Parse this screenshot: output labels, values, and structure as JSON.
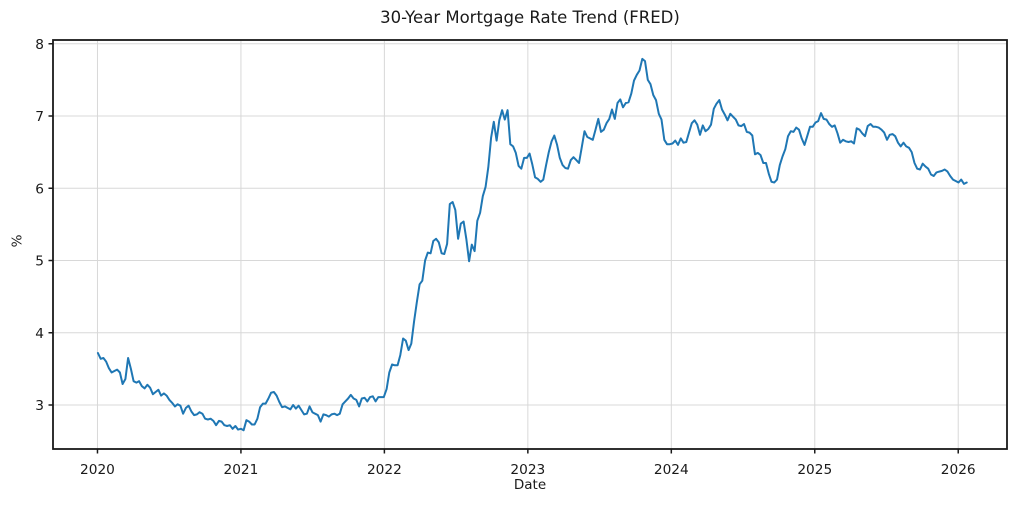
{
  "chart_data": {
    "type": "line",
    "title": "30-Year Mortgage Rate Trend (FRED)",
    "xlabel": "Date",
    "ylabel": "%",
    "grid": true,
    "grid_color": "#d8d8d8",
    "spine_color": "#1a1a1a",
    "line_color": "#1f77b4",
    "legend": "none",
    "xlim": [
      2019.69,
      2026.34
    ],
    "ylim": [
      2.391,
      8.052
    ],
    "x_ticks": [
      2020,
      2021,
      2022,
      2023,
      2024,
      2025,
      2026
    ],
    "y_ticks": [
      3,
      4,
      5,
      6,
      7,
      8
    ],
    "x_unit": "decimal_year",
    "series": [
      {
        "x_start": 2020.003,
        "x_step_years": 0.0191650925,
        "values": [
          3.72,
          3.64,
          3.65,
          3.6,
          3.51,
          3.45,
          3.47,
          3.49,
          3.45,
          3.29,
          3.36,
          3.65,
          3.5,
          3.33,
          3.31,
          3.33,
          3.26,
          3.23,
          3.28,
          3.24,
          3.15,
          3.18,
          3.21,
          3.13,
          3.16,
          3.13,
          3.07,
          3.03,
          2.98,
          3.01,
          2.99,
          2.88,
          2.96,
          2.99,
          2.91,
          2.86,
          2.87,
          2.9,
          2.88,
          2.81,
          2.8,
          2.81,
          2.78,
          2.72,
          2.78,
          2.77,
          2.72,
          2.71,
          2.72,
          2.67,
          2.71,
          2.66,
          2.67,
          2.65,
          2.79,
          2.77,
          2.73,
          2.73,
          2.81,
          2.97,
          3.02,
          3.02,
          3.09,
          3.17,
          3.18,
          3.13,
          3.04,
          2.97,
          2.98,
          2.96,
          2.94,
          3.0,
          2.95,
          2.99,
          2.93,
          2.87,
          2.88,
          2.98,
          2.9,
          2.88,
          2.86,
          2.77,
          2.87,
          2.86,
          2.84,
          2.87,
          2.88,
          2.86,
          2.88,
          3.01,
          3.05,
          3.09,
          3.14,
          3.09,
          3.07,
          2.98,
          3.09,
          3.1,
          3.05,
          3.11,
          3.12,
          3.05,
          3.11,
          3.11,
          3.11,
          3.22,
          3.45,
          3.56,
          3.55,
          3.55,
          3.69,
          3.92,
          3.89,
          3.76,
          3.85,
          4.16,
          4.42,
          4.67,
          4.72,
          5.0,
          5.11,
          5.1,
          5.27,
          5.3,
          5.25,
          5.1,
          5.09,
          5.23,
          5.78,
          5.81,
          5.7,
          5.3,
          5.51,
          5.54,
          5.3,
          4.99,
          5.22,
          5.13,
          5.55,
          5.66,
          5.89,
          6.02,
          6.29,
          6.7,
          6.92,
          6.66,
          6.94,
          7.08,
          6.95,
          7.08,
          6.61,
          6.58,
          6.49,
          6.31,
          6.27,
          6.42,
          6.42,
          6.48,
          6.33,
          6.15,
          6.13,
          6.09,
          6.12,
          6.32,
          6.5,
          6.65,
          6.73,
          6.6,
          6.42,
          6.32,
          6.28,
          6.27,
          6.39,
          6.43,
          6.39,
          6.35,
          6.57,
          6.79,
          6.71,
          6.69,
          6.67,
          6.81,
          6.96,
          6.78,
          6.81,
          6.9,
          6.96,
          7.09,
          6.96,
          7.18,
          7.23,
          7.12,
          7.18,
          7.19,
          7.31,
          7.49,
          7.57,
          7.63,
          7.79,
          7.76,
          7.5,
          7.44,
          7.29,
          7.22,
          7.03,
          6.95,
          6.67,
          6.61,
          6.61,
          6.62,
          6.66,
          6.6,
          6.69,
          6.63,
          6.64,
          6.77,
          6.9,
          6.94,
          6.88,
          6.74,
          6.87,
          6.79,
          6.82,
          6.88,
          7.1,
          7.17,
          7.22,
          7.09,
          7.02,
          6.94,
          7.03,
          6.99,
          6.95,
          6.87,
          6.86,
          6.89,
          6.78,
          6.77,
          6.73,
          6.47,
          6.49,
          6.46,
          6.35,
          6.35,
          6.2,
          6.09,
          6.08,
          6.12,
          6.32,
          6.44,
          6.54,
          6.72,
          6.79,
          6.78,
          6.84,
          6.81,
          6.69,
          6.6,
          6.72,
          6.85,
          6.85,
          6.91,
          6.93,
          7.04,
          6.96,
          6.95,
          6.89,
          6.85,
          6.87,
          6.76,
          6.63,
          6.67,
          6.65,
          6.64,
          6.65,
          6.62,
          6.83,
          6.81,
          6.76,
          6.72,
          6.86,
          6.89,
          6.85,
          6.85,
          6.84,
          6.81,
          6.77,
          6.67,
          6.74,
          6.75,
          6.72,
          6.63,
          6.58,
          6.63,
          6.58,
          6.56,
          6.5,
          6.35,
          6.27,
          6.26,
          6.34,
          6.3,
          6.27,
          6.19,
          6.17,
          6.22,
          6.23,
          6.24,
          6.26,
          6.23,
          6.17,
          6.12,
          6.1,
          6.08,
          6.12,
          6.06,
          6.08
        ]
      }
    ]
  }
}
